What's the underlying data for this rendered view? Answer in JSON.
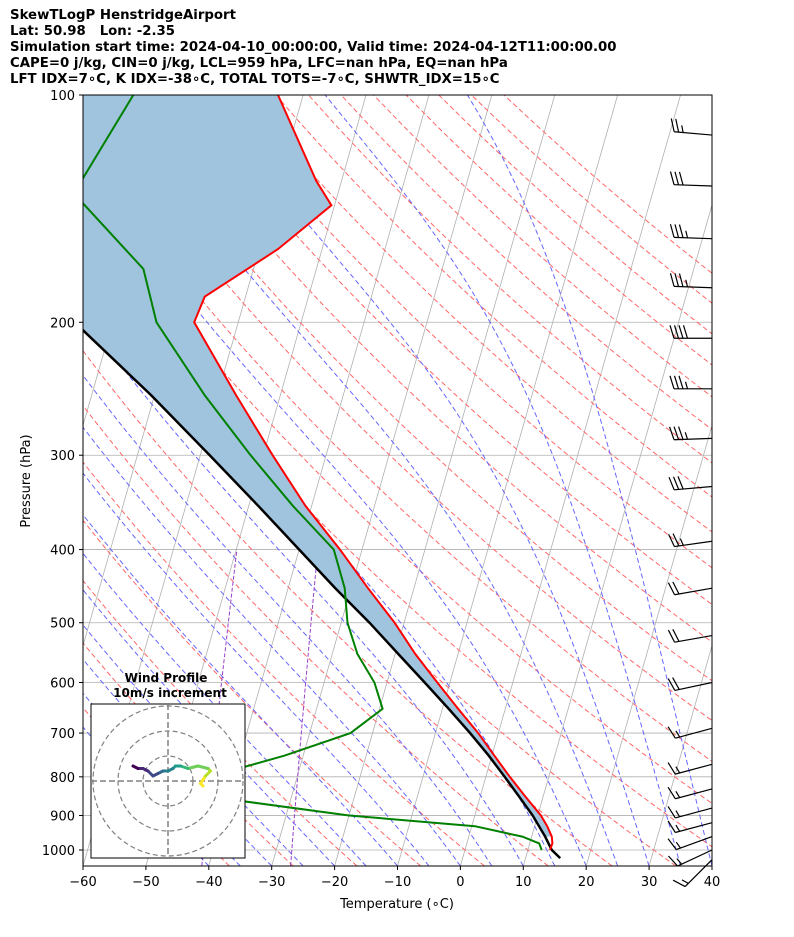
{
  "header": {
    "line1": "SkewTLogP HenstridgeAirport",
    "line2": "Lat: 50.98   Lon: -2.35",
    "line3": "Simulation start time: 2024-04-10_00:00:00, Valid time: 2024-04-12T11:00:00.00",
    "line4": "CAPE=0 j/kg, CIN=0 j/kg, LCL=959 hPa, LFC=nan hPa, EQ=nan hPa",
    "line5": "LFT IDX=7∘C, K IDX=-38∘C, TOTAL TOTS=-7∘C, SHWTR_IDX=15∘C"
  },
  "chart_data": {
    "type": "line",
    "title": "SkewTLogP HenstridgeAirport",
    "xlabel": "Temperature (∘C)",
    "ylabel": "Pressure (hPa)",
    "xlim": [
      -60,
      40
    ],
    "ylim": [
      1050,
      100
    ],
    "y_scale": "log",
    "x_ticks": [
      -60,
      -50,
      -40,
      -30,
      -20,
      -10,
      0,
      10,
      20,
      30,
      40
    ],
    "y_ticks": [
      1000,
      900,
      800,
      700,
      600,
      500,
      400,
      300,
      200,
      100
    ],
    "grid": true,
    "colors": {
      "temperature": "#ff0000",
      "dewpoint": "#008000",
      "parcel": "#000000",
      "shade": "#a0c4de",
      "dry_adiabat": "#ff6666",
      "moist_adiabat": "#6666ff",
      "mixing_ratio": "#9b40c8"
    },
    "series": [
      {
        "key": "temperature",
        "pressure": [
          1000,
          980,
          960,
          930,
          900,
          850,
          800,
          750,
          700,
          650,
          600,
          550,
          500,
          450,
          400,
          350,
          300,
          250,
          200,
          185,
          160,
          140,
          130,
          100
        ],
        "values": [
          13.5,
          13.6,
          13.2,
          12.0,
          10.5,
          7.2,
          3.8,
          0.4,
          -3.2,
          -7.5,
          -12.0,
          -16.8,
          -21.5,
          -27.3,
          -33.5,
          -41.0,
          -48.5,
          -57.0,
          -67.0,
          -66.5,
          -57.0,
          -50.5,
          -54.0,
          -64.0
        ]
      },
      {
        "key": "dewpoint",
        "pressure": [
          1000,
          980,
          960,
          930,
          900,
          850,
          800,
          750,
          700,
          650,
          600,
          550,
          500,
          450,
          400,
          350,
          300,
          250,
          200,
          170,
          135,
          100
        ],
        "values": [
          12.2,
          11.5,
          8.5,
          0.5,
          -20.0,
          -43.0,
          -44.0,
          -33.0,
          -23.5,
          -19.5,
          -22.0,
          -26.0,
          -29.0,
          -31.0,
          -34.5,
          -43.0,
          -52.0,
          -62.0,
          -73.0,
          -77.5,
          -92.0,
          -87.0
        ]
      },
      {
        "key": "parcel",
        "pressure": [
          1025,
          1000,
          959,
          900,
          850,
          800,
          750,
          700,
          650,
          600,
          550,
          500,
          450,
          400,
          350,
          300,
          250,
          200,
          150,
          100
        ],
        "values": [
          15.5,
          13.8,
          12.1,
          9.2,
          6.2,
          3.0,
          -0.5,
          -4.5,
          -9.0,
          -14.0,
          -19.5,
          -25.5,
          -32.5,
          -40.0,
          -48.5,
          -58.5,
          -70.5,
          -86.0,
          -108.0,
          -140.0
        ]
      }
    ],
    "wind_barbs": [
      {
        "pressure": 1030,
        "speed_kt": 15,
        "direction_deg": 225
      },
      {
        "pressure": 1000,
        "speed_kt": 15,
        "direction_deg": 245
      },
      {
        "pressure": 960,
        "speed_kt": 15,
        "direction_deg": 250
      },
      {
        "pressure": 920,
        "speed_kt": 15,
        "direction_deg": 255
      },
      {
        "pressure": 880,
        "speed_kt": 15,
        "direction_deg": 255
      },
      {
        "pressure": 830,
        "speed_kt": 15,
        "direction_deg": 255
      },
      {
        "pressure": 770,
        "speed_kt": 15,
        "direction_deg": 255
      },
      {
        "pressure": 690,
        "speed_kt": 15,
        "direction_deg": 255
      },
      {
        "pressure": 600,
        "speed_kt": 20,
        "direction_deg": 258
      },
      {
        "pressure": 520,
        "speed_kt": 20,
        "direction_deg": 260
      },
      {
        "pressure": 450,
        "speed_kt": 20,
        "direction_deg": 260
      },
      {
        "pressure": 390,
        "speed_kt": 25,
        "direction_deg": 262
      },
      {
        "pressure": 330,
        "speed_kt": 30,
        "direction_deg": 265
      },
      {
        "pressure": 285,
        "speed_kt": 35,
        "direction_deg": 268
      },
      {
        "pressure": 245,
        "speed_kt": 35,
        "direction_deg": 270
      },
      {
        "pressure": 210,
        "speed_kt": 40,
        "direction_deg": 270
      },
      {
        "pressure": 180,
        "speed_kt": 35,
        "direction_deg": 272
      },
      {
        "pressure": 155,
        "speed_kt": 35,
        "direction_deg": 272
      },
      {
        "pressure": 132,
        "speed_kt": 30,
        "direction_deg": 272
      },
      {
        "pressure": 113,
        "speed_kt": 25,
        "direction_deg": 275
      }
    ],
    "inset": {
      "title_line1": "Wind Profile",
      "title_line2": "10m/s increment",
      "rings_ms": [
        10,
        20,
        30
      ],
      "hodograph_u": [
        14,
        13,
        15,
        17,
        16,
        12,
        8,
        5,
        3,
        2,
        0,
        -2,
        -4,
        -6,
        -8,
        -10,
        -12,
        -14
      ],
      "hodograph_v": [
        -2,
        -1,
        2,
        4,
        5,
        6,
        5,
        6,
        6,
        5,
        4,
        4,
        3,
        2,
        4,
        5,
        5,
        6
      ]
    }
  }
}
